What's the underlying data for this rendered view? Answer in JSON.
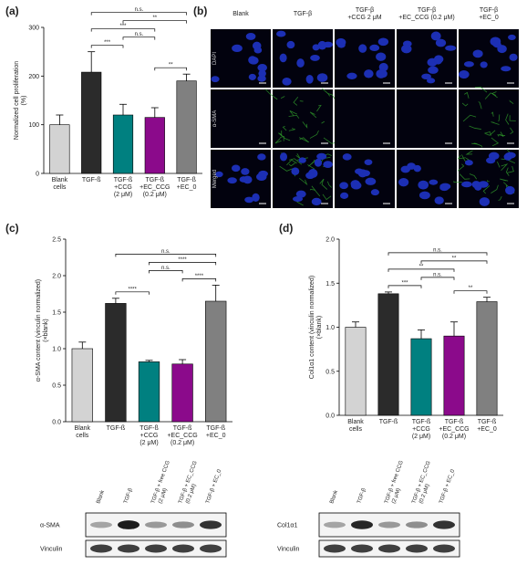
{
  "panel_labels": [
    "(a)",
    "(b)",
    "(c)",
    "(d)"
  ],
  "chart_data": [
    {
      "type": "bar",
      "y_label": [
        "Normalized cell proliferation",
        "(%)"
      ],
      "categories": [
        [
          "Blank",
          "cells"
        ],
        [
          "TGF-ß"
        ],
        [
          "TGF-ß",
          "+CCG",
          "(2 μM)"
        ],
        [
          "TGF-ß",
          "+EC_CCG",
          "(0.2 μM)"
        ],
        [
          "TGF-ß",
          "+EC_0"
        ]
      ],
      "values": [
        100,
        208,
        120,
        115,
        190
      ],
      "errors": [
        20,
        42,
        22,
        20,
        14
      ],
      "colors": [
        "#d3d3d3",
        "#2b2b2b",
        "#008080",
        "#8b0a8b",
        "#808080"
      ],
      "ylim": [
        0,
        300
      ],
      "yticks": [
        0,
        100,
        200,
        300
      ],
      "annotations": [
        {
          "text": "n.s.",
          "from": 1,
          "to": 4
        },
        {
          "text": "***",
          "from": 1,
          "to": 3
        },
        {
          "text": "***",
          "from": 1,
          "to": 2
        },
        {
          "text": "**",
          "from": 3,
          "to": 4
        },
        {
          "text": "**",
          "from": 2,
          "to": 4
        },
        {
          "text": "n.s.",
          "from": 2,
          "to": 3
        }
      ]
    },
    {
      "type": "bar",
      "y_label": [
        "α-SMA content (vinculin normalized)",
        "(×blank)"
      ],
      "categories": [
        [
          "Blank",
          "cells"
        ],
        [
          "TGF-ß"
        ],
        [
          "TGF-ß",
          "+CCG",
          "(2 μM)"
        ],
        [
          "TGF-ß",
          "+EC_CCG",
          "(0.2 μM)"
        ],
        [
          "TGF-ß",
          "+EC_0"
        ]
      ],
      "values": [
        1.0,
        1.62,
        0.82,
        0.79,
        1.65
      ],
      "errors": [
        0.09,
        0.07,
        0.02,
        0.06,
        0.22
      ],
      "colors": [
        "#d3d3d3",
        "#2b2b2b",
        "#008080",
        "#8b0a8b",
        "#808080"
      ],
      "ylim": [
        0,
        2.5
      ],
      "yticks": [
        {
          "value": 0,
          "label": "0.0"
        },
        0.5,
        {
          "value": 1,
          "label": "1.0"
        },
        1.5,
        {
          "value": 2,
          "label": "2.0"
        },
        2.5
      ],
      "annotations": [
        {
          "text": "n.s.",
          "from": 1,
          "to": 4
        },
        {
          "text": "****",
          "from": 3,
          "to": 4
        },
        {
          "text": "****",
          "from": 2,
          "to": 4
        },
        {
          "text": "****",
          "from": 1,
          "to": 2
        },
        {
          "text": "n.s.",
          "from": 2,
          "to": 3
        }
      ]
    },
    {
      "type": "bar",
      "y_label": [
        "Col1α1 content (vinculin normalized)",
        "(×blank)"
      ],
      "categories": [
        [
          "Blank",
          "cells"
        ],
        [
          "TGF-ß"
        ],
        [
          "TGF-ß",
          "+CCG",
          "(2 μM)"
        ],
        [
          "TGF-ß",
          "+EC_CCG",
          "(0.2 μM)"
        ],
        [
          "TGF-ß",
          "+EC_0"
        ]
      ],
      "values": [
        1.0,
        1.38,
        0.87,
        0.9,
        1.29
      ],
      "errors": [
        0.06,
        0.02,
        0.1,
        0.16,
        0.05
      ],
      "colors": [
        "#d3d3d3",
        "#2b2b2b",
        "#008080",
        "#8b0a8b",
        "#808080"
      ],
      "ylim": [
        0,
        2.0
      ],
      "yticks": [
        {
          "value": 0,
          "label": "0.0"
        },
        0.5,
        {
          "value": 1,
          "label": "1.0"
        },
        1.5,
        {
          "value": 2,
          "label": "2.0"
        }
      ],
      "annotations": [
        {
          "text": "n.s.",
          "from": 1,
          "to": 4
        },
        {
          "text": "**",
          "from": 1,
          "to": 3
        },
        {
          "text": "**",
          "from": 3,
          "to": 4
        },
        {
          "text": "**",
          "from": 2,
          "to": 4
        },
        {
          "text": "***",
          "from": 1,
          "to": 2
        },
        {
          "text": "n.s.",
          "from": 2,
          "to": 3
        }
      ]
    }
  ],
  "microscopy": {
    "columns": [
      [
        "Blank"
      ],
      [
        "TGF-β"
      ],
      [
        "TGF-β",
        "+CCG 2 μM"
      ],
      [
        "TGF-β",
        "+EC_CCG (0.2 μM)"
      ],
      [
        "TGF-β",
        "+EC_0"
      ]
    ],
    "rows": [
      "DAPI",
      "α-SMA",
      "Merged"
    ]
  },
  "blots": [
    {
      "lanes": [
        [
          "Blank"
        ],
        [
          "TGF-β"
        ],
        [
          "TGF-β + free CCG",
          "(2 μM)"
        ],
        [
          "TGF-β + EC_CCG",
          "(0.2 μM)"
        ],
        [
          "TGF-β + EC_0"
        ]
      ],
      "bands": [
        "α-SMA",
        "Vinculin"
      ]
    },
    {
      "lanes": [
        [
          "Blank"
        ],
        [
          "TGF-β"
        ],
        [
          "TGF-β + free CCG",
          "(2 μM)"
        ],
        [
          "TGF-β + EC_CCG",
          "(0.2 μM)"
        ],
        [
          "TGF-β + EC_0"
        ]
      ],
      "bands": [
        "Col1α1",
        "Vinculin"
      ]
    }
  ]
}
